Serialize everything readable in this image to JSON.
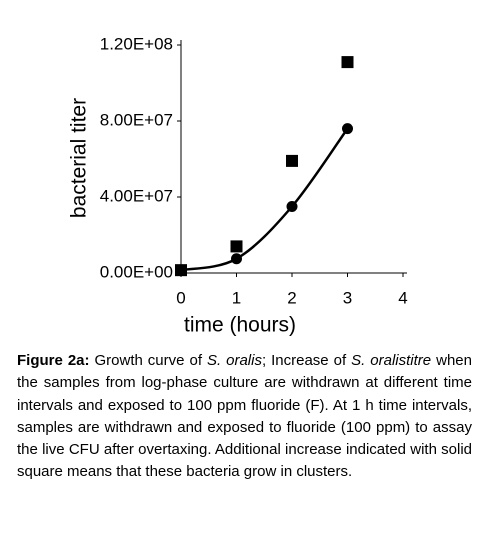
{
  "chart_data": {
    "type": "scatter",
    "xlabel": "time (hours)",
    "ylabel": "bacterial titer",
    "xlim": [
      0,
      4
    ],
    "xticks": [
      0,
      1,
      2,
      3,
      4
    ],
    "ylim": [
      0,
      120000000
    ],
    "yticks": [
      {
        "value": 0,
        "label": "0.00E+00"
      },
      {
        "value": 40000000,
        "label": "4.00E+07"
      },
      {
        "value": 80000000,
        "label": "8.00E+07"
      },
      {
        "value": 120000000,
        "label": "1.20E+08"
      }
    ],
    "series": [
      {
        "marker": "square",
        "color": "#000000",
        "line": false,
        "x": [
          0,
          1,
          2,
          3
        ],
        "values": [
          1500000,
          14000000,
          59000000,
          111000000
        ]
      },
      {
        "marker": "circle",
        "color": "#000000",
        "line": true,
        "x": [
          0,
          1,
          2,
          3
        ],
        "values": [
          1500000,
          7500000,
          35000000,
          76000000
        ]
      }
    ]
  },
  "caption": {
    "spans": [
      {
        "text": "Figure 2a:",
        "style": "bold"
      },
      {
        "text": " Growth curve of ",
        "style": "normal"
      },
      {
        "text": "S. oralis",
        "style": "italic"
      },
      {
        "text": "; Increase of ",
        "style": "normal"
      },
      {
        "text": "S. oralistitre",
        "style": "italic"
      },
      {
        "text": " when the samples from log-phase culture are withdrawn at different time intervals and exposed to 100 ppm fluoride (F). At 1 h time intervals, samples are withdrawn and exposed to fluoride (100 ppm) to assay the live CFU after overtaxing. Additional increase indicated with solid square means that these bacteria grow in clusters.",
        "style": "normal"
      }
    ]
  }
}
